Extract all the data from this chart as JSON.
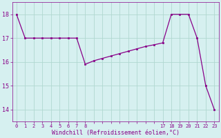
{
  "x": [
    0,
    1,
    2,
    3,
    4,
    5,
    6,
    7,
    8,
    9,
    10,
    11,
    12,
    13,
    14,
    15,
    16,
    17,
    18,
    19,
    20,
    21,
    22,
    23
  ],
  "y": [
    18,
    17,
    17,
    17,
    17,
    17,
    17,
    17,
    15.9,
    16.05,
    16.15,
    16.25,
    16.35,
    16.45,
    16.55,
    16.65,
    16.72,
    16.8,
    18,
    18,
    18,
    17,
    15,
    14
  ],
  "line_color": "#880088",
  "marker_color": "#880088",
  "bg_color": "#d6f0f0",
  "grid_color": "#b0d8d0",
  "xlabel": "Windchill (Refroidissement éolien,°C)",
  "xlabel_color": "#880088",
  "tick_color": "#880088",
  "yticks": [
    14,
    15,
    16,
    17,
    18
  ],
  "xtick_labels": [
    "0",
    "1",
    "2",
    "3",
    "4",
    "5",
    "6",
    "7",
    "8",
    "",
    "",
    "",
    "",
    "",
    "",
    "",
    "",
    "17",
    "18",
    "19",
    "20",
    "21",
    "22",
    "23"
  ],
  "ylim": [
    13.5,
    18.5
  ],
  "xlim": [
    -0.5,
    23.5
  ]
}
